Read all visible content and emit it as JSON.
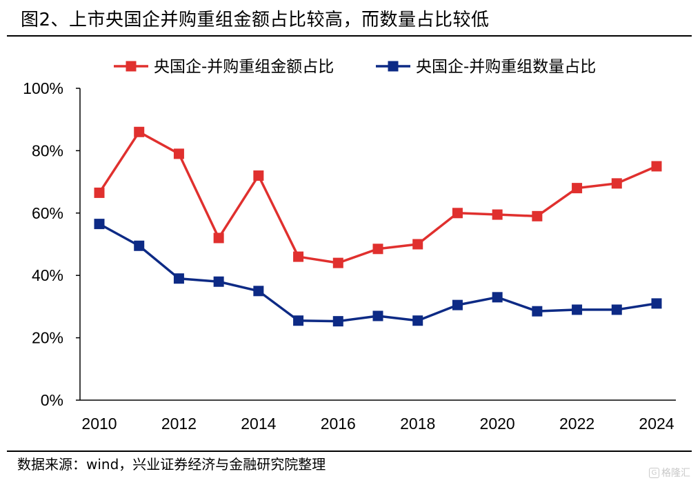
{
  "title": "图2、上市央国企并购重组金额占比较高，而数量占比较低",
  "source": "数据来源：wind，兴业证券经济与金融研究院整理",
  "watermark": "格隆汇",
  "watermark_icon": "G",
  "colors": {
    "amount": "#e0302e",
    "count": "#0d2a85"
  },
  "chart_data": {
    "type": "line",
    "title": "图2、上市央国企并购重组金额占比较高，而数量占比较低",
    "x": [
      2010,
      2011,
      2012,
      2013,
      2014,
      2015,
      2016,
      2017,
      2018,
      2019,
      2020,
      2021,
      2022,
      2023,
      2024
    ],
    "x_ticks": [
      2010,
      2012,
      2014,
      2016,
      2018,
      2020,
      2022,
      2024
    ],
    "y_ticks": [
      "0%",
      "20%",
      "40%",
      "60%",
      "80%",
      "100%"
    ],
    "ylim": [
      0,
      100
    ],
    "xlabel": "",
    "ylabel": "",
    "grid": false,
    "legend_position": "top",
    "series": [
      {
        "name": "央国企-并购重组金额占比",
        "color": "#e0302e",
        "values": [
          66.5,
          86,
          79,
          52,
          72,
          46,
          44,
          48.5,
          50,
          60,
          59.5,
          59,
          68,
          69.5,
          75
        ]
      },
      {
        "name": "央国企-并购重组数量占比",
        "color": "#0d2a85",
        "values": [
          56.5,
          49.5,
          39,
          38,
          35,
          25.5,
          25.3,
          27,
          25.5,
          30.5,
          33,
          28.5,
          29,
          29,
          31
        ]
      }
    ]
  }
}
